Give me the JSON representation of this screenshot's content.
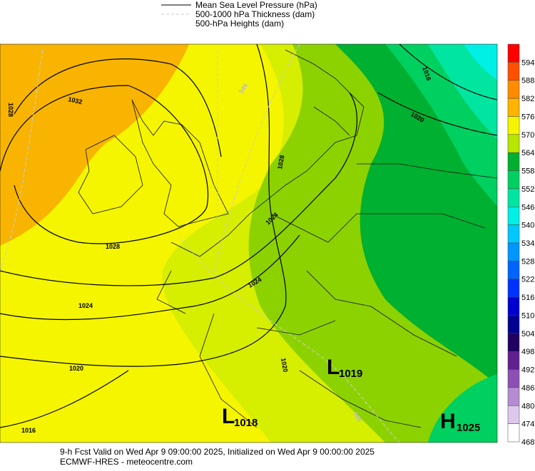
{
  "legend": [
    "Mean Sea Level Pressure (hPa)",
    "500-1000 hPa Thickness (dam)",
    "500-hPa Heights (dam)"
  ],
  "colorbar": {
    "labels": [
      594,
      588,
      582,
      576,
      570,
      564,
      558,
      552,
      546,
      540,
      534,
      528,
      522,
      516,
      510,
      504,
      498,
      492,
      486,
      480,
      474,
      468
    ],
    "colors": [
      "#ff0000",
      "#ff5000",
      "#ff8c00",
      "#ffb400",
      "#f5f500",
      "#b8e600",
      "#00b030",
      "#00d060",
      "#00e6a0",
      "#00f0e6",
      "#00c8ff",
      "#0096ff",
      "#0064ff",
      "#0032ff",
      "#0000d0",
      "#000090",
      "#200060",
      "#602090",
      "#8c50b4",
      "#b48cd2",
      "#dcc8eb",
      "#ffffff"
    ]
  },
  "contour_labels": [
    "1032",
    "1028",
    "1028",
    "1024",
    "1024",
    "1020",
    "1020",
    "1016",
    "1016",
    "1020",
    "1028",
    "1024",
    "546",
    "546"
  ],
  "pressure_centers": [
    {
      "letter": "L",
      "value": "1018"
    },
    {
      "letter": "L",
      "value": "1019"
    },
    {
      "letter": "H",
      "value": "1025"
    }
  ],
  "footer": [
    "9-h Fcst Valid on Wed Apr  9 09:00:00 2025, Initialized on Wed Apr  9 00:00:00 2025",
    "ECMWF-HRES  - meteocentre.com"
  ]
}
